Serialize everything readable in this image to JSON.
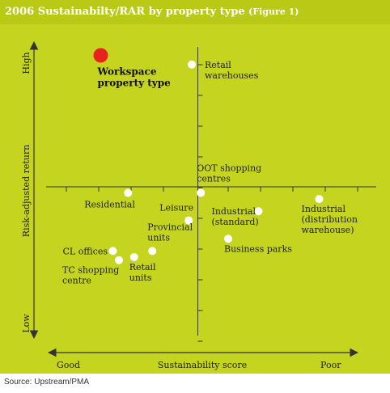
{
  "title": "2006 Sustainabilty/RAR by property type",
  "figure_label": "(Figure 1)",
  "source": "Source: Upstream/PMA",
  "colors": {
    "background": "#c4d41f",
    "point": "#ffffff",
    "highlight": "#e8231c",
    "axis": "#333333"
  },
  "chart_data": {
    "type": "scatter",
    "xlabel": "Sustainability score",
    "ylabel": "Risk-adjusted return",
    "x_end_labels": {
      "left": "Good",
      "right": "Poor"
    },
    "y_end_labels": {
      "top": "High",
      "bottom": "Low"
    },
    "xlim": [
      0,
      10
    ],
    "ylim": [
      0,
      10
    ],
    "grid": false,
    "axes_cross": [
      5,
      5
    ],
    "points": [
      {
        "label": [
          "Workspace",
          "property type"
        ],
        "x": 1.8,
        "y": 9.3,
        "highlight": true,
        "anchor": "below"
      },
      {
        "label": [
          "Retail",
          "warehouses"
        ],
        "x": 4.8,
        "y": 9.0,
        "anchor": "right"
      },
      {
        "label": [
          "OOT shopping",
          "centres"
        ],
        "x": 5.1,
        "y": 4.8,
        "anchor": "above"
      },
      {
        "label": [
          "Residential"
        ],
        "x": 2.7,
        "y": 4.8,
        "anchor": "below-left"
      },
      {
        "label": [
          "Leisure"
        ],
        "x": 4.7,
        "y": 3.9,
        "anchor": "above-left"
      },
      {
        "label": [
          "Industrial",
          "(standard)"
        ],
        "x": 7.0,
        "y": 4.2,
        "anchor": "left-below"
      },
      {
        "label": [
          "Industrial",
          "(distribution",
          "warehouse)"
        ],
        "x": 9.0,
        "y": 4.6,
        "anchor": "below"
      },
      {
        "label": [
          "Provincial",
          "units"
        ],
        "x": 3.5,
        "y": 2.9,
        "anchor": "above"
      },
      {
        "label": [
          "Business parks"
        ],
        "x": 6.0,
        "y": 3.3,
        "anchor": "below"
      },
      {
        "label": [
          "CL offices"
        ],
        "x": 2.2,
        "y": 2.9,
        "anchor": "left"
      },
      {
        "label": [
          "TC shopping",
          "centre"
        ],
        "x": 2.4,
        "y": 2.6,
        "anchor": "below-left"
      },
      {
        "label": [
          "Retail",
          "units"
        ],
        "x": 2.9,
        "y": 2.7,
        "anchor": "below"
      }
    ]
  }
}
